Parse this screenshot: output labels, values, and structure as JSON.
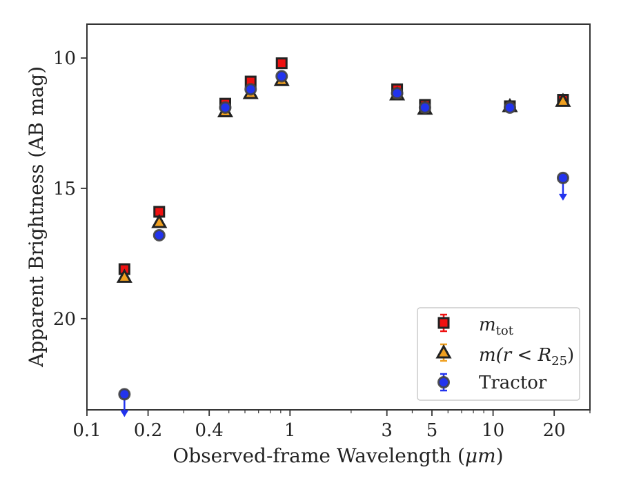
{
  "chart_data": {
    "type": "scatter",
    "xlabel_prefix": "Observed-frame Wavelength (",
    "xlabel_unit": "μm",
    "xlabel_suffix": ")",
    "ylabel": "Apparent Brightness (AB mag)",
    "x_scale": "log",
    "xlim": [
      0.1,
      30
    ],
    "ylim": [
      23.5,
      8.7
    ],
    "y_inverted": true,
    "x_ticks": [
      {
        "value": 0.1,
        "label": "0.1"
      },
      {
        "value": 0.2,
        "label": "0.2"
      },
      {
        "value": 0.4,
        "label": "0.4"
      },
      {
        "value": 1,
        "label": "1"
      },
      {
        "value": 3,
        "label": "3"
      },
      {
        "value": 5,
        "label": "5"
      },
      {
        "value": 10,
        "label": "10"
      },
      {
        "value": 20,
        "label": "20"
      }
    ],
    "y_ticks": [
      {
        "value": 10,
        "label": "10"
      },
      {
        "value": 15,
        "label": "15"
      },
      {
        "value": 20,
        "label": "20"
      }
    ],
    "grid": false,
    "legend": {
      "position": "lower-right",
      "entries": [
        {
          "series": "m_tot",
          "label_main": "m",
          "label_sub": "tot"
        },
        {
          "series": "m_r25",
          "label_main": "m(r < R",
          "label_sub": "25",
          "label_end": ")"
        },
        {
          "series": "tractor",
          "label_main": "Tractor"
        }
      ]
    },
    "series": [
      {
        "key": "m_tot",
        "marker": "square",
        "color": "#ee1111",
        "edge": "#222222",
        "points": [
          {
            "x": 0.153,
            "y": 18.1
          },
          {
            "x": 0.227,
            "y": 15.9
          },
          {
            "x": 0.48,
            "y": 11.75
          },
          {
            "x": 0.64,
            "y": 10.9
          },
          {
            "x": 0.91,
            "y": 10.2
          },
          {
            "x": 3.37,
            "y": 11.2
          },
          {
            "x": 4.62,
            "y": 11.8
          },
          {
            "x": 12.1,
            "y": 11.85
          },
          {
            "x": 22.1,
            "y": 11.6
          }
        ]
      },
      {
        "key": "m_r25",
        "marker": "triangle",
        "color": "#f0a020",
        "edge": "#222222",
        "points": [
          {
            "x": 0.153,
            "y": 18.4
          },
          {
            "x": 0.227,
            "y": 16.3
          },
          {
            "x": 0.48,
            "y": 12.05
          },
          {
            "x": 0.64,
            "y": 11.35
          },
          {
            "x": 0.91,
            "y": 10.85
          },
          {
            "x": 3.37,
            "y": 11.4
          },
          {
            "x": 4.62,
            "y": 11.95
          },
          {
            "x": 12.1,
            "y": 11.85
          },
          {
            "x": 22.1,
            "y": 11.65
          }
        ]
      },
      {
        "key": "tractor",
        "marker": "circle",
        "color": "#2233ee",
        "edge": "#444444",
        "points": [
          {
            "x": 0.153,
            "y": 22.9,
            "upper_limit": true
          },
          {
            "x": 0.227,
            "y": 16.8
          },
          {
            "x": 0.48,
            "y": 11.9
          },
          {
            "x": 0.64,
            "y": 11.2
          },
          {
            "x": 0.91,
            "y": 10.7
          },
          {
            "x": 3.37,
            "y": 11.35
          },
          {
            "x": 4.62,
            "y": 11.9
          },
          {
            "x": 12.1,
            "y": 11.9
          },
          {
            "x": 22.1,
            "y": 14.6,
            "upper_limit": true
          }
        ]
      }
    ]
  }
}
